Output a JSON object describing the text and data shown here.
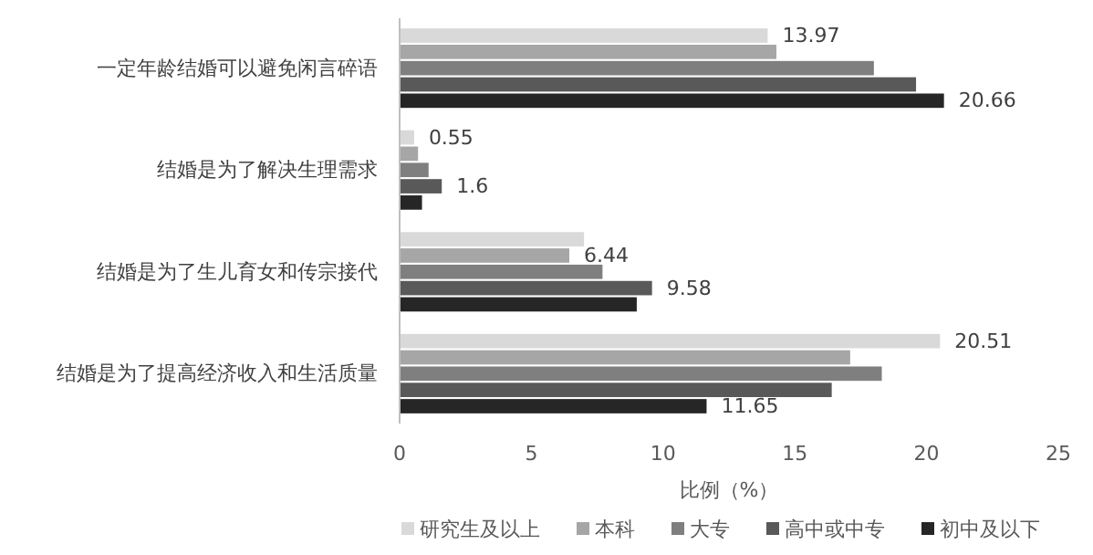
{
  "chart_data": {
    "type": "bar",
    "orientation": "horizontal",
    "xlabel": "比例（%）",
    "categories": [
      "一定年龄结婚可以避免闲言碎语",
      "结婚是为了解决生理需求",
      "结婚是为了生儿育女和传宗接代",
      "结婚是为了提高经济收入和生活质量"
    ],
    "series": [
      {
        "name": "研究生及以上",
        "color": "#d9d9d9",
        "values": [
          13.97,
          0.55,
          7.0,
          20.51
        ],
        "value_labels": [
          "13.97",
          "0.55",
          null,
          "20.51"
        ]
      },
      {
        "name": "本科",
        "color": "#a6a6a6",
        "values": [
          14.3,
          0.7,
          6.44,
          17.1
        ],
        "value_labels": [
          null,
          null,
          "6.44",
          null
        ]
      },
      {
        "name": "大专",
        "color": "#7f7f7f",
        "values": [
          18.0,
          1.1,
          7.7,
          18.3
        ],
        "value_labels": [
          null,
          null,
          null,
          null
        ]
      },
      {
        "name": "高中或中专",
        "color": "#595959",
        "values": [
          19.6,
          1.6,
          9.58,
          16.4
        ],
        "value_labels": [
          null,
          "1.6",
          "9.58",
          null
        ]
      },
      {
        "name": "初中及以下",
        "color": "#262626",
        "values": [
          20.66,
          0.85,
          9.0,
          11.65
        ],
        "value_labels": [
          "20.66",
          null,
          null,
          "11.65"
        ]
      }
    ],
    "xlim": [
      0,
      25
    ],
    "xticks": [
      0,
      5,
      10,
      15,
      20,
      25
    ],
    "grid": false,
    "legend": "bottom"
  }
}
